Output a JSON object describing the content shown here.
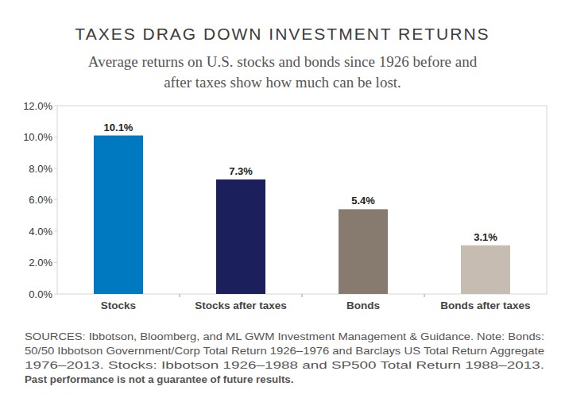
{
  "chart_data": {
    "type": "bar",
    "title": "TAXES DRAG DOWN INVESTMENT RETURNS",
    "subtitle": [
      "Average returns on U.S. stocks and bonds since 1926 before and",
      "after taxes show how much can be lost."
    ],
    "categories": [
      "Stocks",
      "Stocks after taxes",
      "Bonds",
      "Bonds after taxes"
    ],
    "values": [
      10.1,
      7.3,
      5.4,
      3.1
    ],
    "value_labels": [
      "10.1%",
      "7.3%",
      "5.4%",
      "3.1%"
    ],
    "colors": [
      "#0079c1",
      "#1b1f5c",
      "#877b70",
      "#c6bcb2"
    ],
    "ylim": [
      0,
      12
    ],
    "yticks": [
      {
        "value": 0,
        "label": "0.0%"
      },
      {
        "value": 2,
        "label": "2.0%"
      },
      {
        "value": 4,
        "label": "4.0%"
      },
      {
        "value": 6,
        "label": "6.0%"
      },
      {
        "value": 8,
        "label": "8.0%"
      },
      {
        "value": 10,
        "label": "10.0%"
      },
      {
        "value": 12,
        "label": "12.0%"
      }
    ],
    "grid": false,
    "data_labels": true,
    "source": [
      "SOURCES: Ibbotson, Bloomberg, and ML GWM Investment Management & Guidance. Note: Bonds:",
      "50/50 Ibbotson Government/Corp Total Return 1926–1976 and Barclays US Total Return Aggregate",
      "1976–2013. Stocks: Ibbotson 1926–1988 and SP500 Total Return 1988–2013."
    ],
    "disclaimer": "Past performance is not a guarantee of future results."
  }
}
